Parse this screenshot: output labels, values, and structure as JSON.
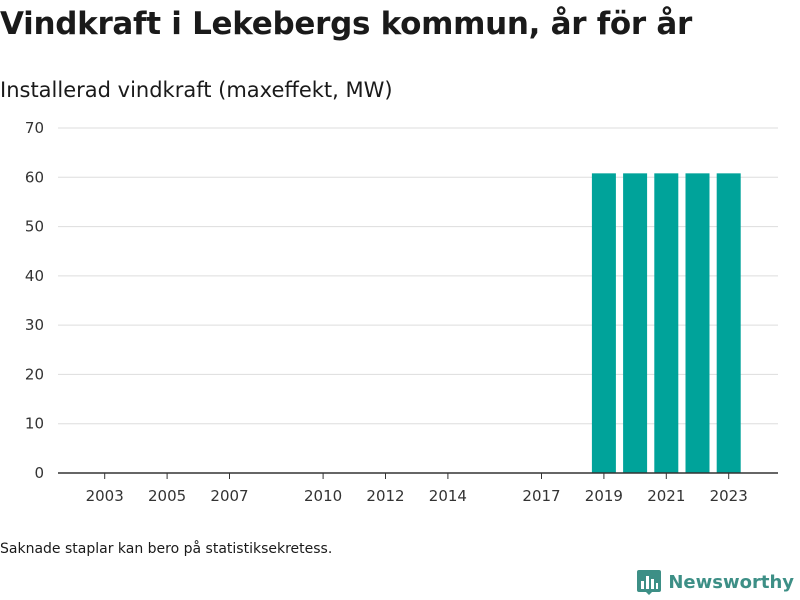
{
  "header": {
    "title": "Vindkraft i Lekebergs kommun, år för år",
    "subtitle": "Installerad vindkraft (maxeffekt, MW)"
  },
  "footer": {
    "note": "Saknade staplar kan bero på statistiksekretess.",
    "brand": "Newsworthy",
    "brand_icon": "bar-chart-logo-icon"
  },
  "colors": {
    "bar": "#00a39a",
    "grid": "#dddddd",
    "axis": "#333333",
    "brand": "#3d8f86"
  },
  "chart_data": {
    "type": "bar",
    "title": "Vindkraft i Lekebergs kommun, år för år",
    "subtitle": "Installerad vindkraft (maxeffekt, MW)",
    "xlabel": "",
    "ylabel": "",
    "categories": [
      2002,
      2003,
      2004,
      2005,
      2006,
      2007,
      2008,
      2009,
      2010,
      2011,
      2012,
      2013,
      2014,
      2015,
      2016,
      2017,
      2018,
      2019,
      2020,
      2021,
      2022,
      2023,
      2024
    ],
    "values": [
      null,
      null,
      null,
      null,
      null,
      null,
      null,
      null,
      null,
      null,
      null,
      null,
      null,
      null,
      null,
      null,
      null,
      60.8,
      60.8,
      60.8,
      60.8,
      60.8,
      null
    ],
    "x_tick_labels": [
      "2003",
      "2005",
      "2007",
      "2010",
      "2012",
      "2014",
      "2017",
      "2019",
      "2021",
      "2023"
    ],
    "y_ticks": [
      0,
      10,
      20,
      30,
      40,
      50,
      60,
      70
    ],
    "ylim": [
      0,
      70
    ],
    "grid": true,
    "legend": "none"
  }
}
